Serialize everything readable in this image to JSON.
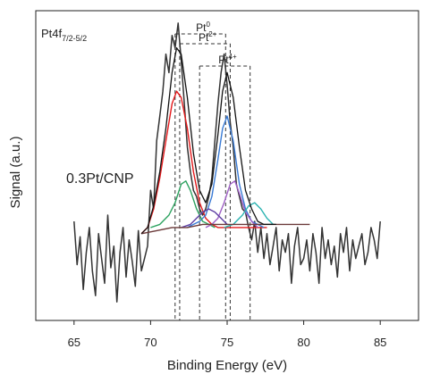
{
  "chart_data": {
    "type": "line",
    "title": "",
    "xlabel": "Binding Energy (eV)",
    "ylabel": "Signal (a.u.)",
    "xlim": [
      62.5,
      87.5
    ],
    "ylim": [
      0,
      1
    ],
    "xticks": [
      65,
      70,
      75,
      80,
      85
    ],
    "yticks_shown": false,
    "grid": false,
    "legend": "none",
    "annotations": {
      "region_label": "Pt4f",
      "region_sub": "7/2-5/2",
      "sample_label": "0.3Pt/CNP",
      "states": [
        {
          "base": "Pt",
          "sup": "0",
          "positions_ev": [
            71.6,
            74.9
          ]
        },
        {
          "base": "Pt",
          "sup": "2+",
          "positions_ev": [
            71.9,
            75.2
          ]
        },
        {
          "base": "Pt",
          "sup": "4+",
          "positions_ev": [
            73.2,
            76.5
          ]
        }
      ]
    },
    "series": [
      {
        "role": "raw-signal",
        "color": "#333333",
        "x": [
          65.0,
          65.2,
          65.4,
          65.6,
          65.8,
          66.0,
          66.2,
          66.4,
          66.6,
          66.8,
          67.0,
          67.2,
          67.4,
          67.6,
          67.8,
          68.0,
          68.2,
          68.4,
          68.6,
          68.8,
          69.0,
          69.2,
          69.4,
          69.6,
          69.8,
          70.0,
          70.2,
          70.4,
          70.6,
          70.8,
          71.0,
          71.2,
          71.4,
          71.6,
          71.8,
          72.0,
          72.2,
          72.4,
          72.6,
          72.8,
          73.0,
          73.2,
          73.4,
          73.6,
          73.8,
          74.0,
          74.2,
          74.4,
          74.6,
          74.8,
          75.0,
          75.2,
          75.4,
          75.6,
          75.8,
          76.0,
          76.2,
          76.4,
          76.6,
          76.8,
          77.0,
          77.2,
          77.4,
          77.6,
          77.8,
          78.0,
          78.2,
          78.4,
          78.6,
          78.8,
          79.0,
          79.2,
          79.4,
          79.6,
          79.8,
          80.0,
          80.2,
          80.4,
          80.6,
          80.8,
          81.0,
          81.2,
          81.4,
          81.6,
          81.8,
          82.0,
          82.2,
          82.4,
          82.6,
          82.8,
          83.0,
          83.2,
          83.4,
          83.6,
          83.8,
          84.0,
          84.2,
          84.4,
          84.6,
          84.8,
          85.0
        ],
        "y": [
          0.32,
          0.18,
          0.27,
          0.1,
          0.22,
          0.3,
          0.16,
          0.08,
          0.28,
          0.2,
          0.12,
          0.34,
          0.17,
          0.24,
          0.06,
          0.22,
          0.3,
          0.14,
          0.26,
          0.19,
          0.11,
          0.29,
          0.16,
          0.2,
          0.24,
          0.42,
          0.36,
          0.58,
          0.66,
          0.74,
          0.86,
          0.8,
          0.92,
          0.88,
          0.96,
          0.84,
          0.7,
          0.56,
          0.48,
          0.42,
          0.4,
          0.36,
          0.34,
          0.36,
          0.4,
          0.46,
          0.58,
          0.7,
          0.8,
          0.86,
          0.76,
          0.64,
          0.56,
          0.44,
          0.4,
          0.36,
          0.35,
          0.3,
          0.26,
          0.32,
          0.22,
          0.3,
          0.2,
          0.28,
          0.18,
          0.24,
          0.3,
          0.16,
          0.26,
          0.22,
          0.28,
          0.12,
          0.24,
          0.3,
          0.18,
          0.2,
          0.26,
          0.16,
          0.28,
          0.22,
          0.12,
          0.3,
          0.2,
          0.26,
          0.18,
          0.24,
          0.14,
          0.28,
          0.22,
          0.3,
          0.16,
          0.26,
          0.2,
          0.24,
          0.28,
          0.18,
          0.22,
          0.3,
          0.26,
          0.2,
          0.32
        ]
      },
      {
        "role": "peak-fit",
        "color": "#e41a1c",
        "x": [
          69.4,
          69.8,
          70.2,
          70.6,
          71.0,
          71.4,
          71.7,
          72.0,
          72.4,
          72.8,
          73.2,
          73.6,
          74.0,
          74.4,
          74.8,
          75.2,
          75.6,
          76.0,
          76.4,
          76.8,
          77.2,
          77.6
        ],
        "y": [
          0.28,
          0.3,
          0.36,
          0.46,
          0.58,
          0.7,
          0.74,
          0.72,
          0.62,
          0.48,
          0.38,
          0.33,
          0.31,
          0.3,
          0.3,
          0.3,
          0.3,
          0.3,
          0.3,
          0.3,
          0.3,
          0.3
        ]
      },
      {
        "role": "peak-fit",
        "color": "#3a7bd5",
        "x": [
          72.4,
          72.8,
          73.2,
          73.6,
          74.0,
          74.4,
          74.7,
          75.0,
          75.4,
          75.8,
          76.2,
          76.6,
          77.0,
          77.4
        ],
        "y": [
          0.3,
          0.31,
          0.32,
          0.34,
          0.4,
          0.52,
          0.62,
          0.66,
          0.58,
          0.44,
          0.36,
          0.32,
          0.31,
          0.3
        ]
      },
      {
        "role": "peak-fit",
        "color": "#2ca25f",
        "x": [
          70.0,
          70.6,
          71.2,
          71.6,
          72.0,
          72.3,
          72.6,
          73.0,
          73.4,
          73.8,
          74.2
        ],
        "y": [
          0.3,
          0.31,
          0.34,
          0.38,
          0.44,
          0.45,
          0.42,
          0.36,
          0.32,
          0.31,
          0.3
        ]
      },
      {
        "role": "peak-fit",
        "color": "#9e5fc4",
        "x": [
          73.6,
          74.0,
          74.4,
          74.8,
          75.2,
          75.5,
          75.8,
          76.2,
          76.6,
          77.0
        ],
        "y": [
          0.3,
          0.31,
          0.33,
          0.38,
          0.44,
          0.45,
          0.41,
          0.35,
          0.32,
          0.3
        ]
      },
      {
        "role": "peak-fit",
        "color": "#2bb3b1",
        "x": [
          74.8,
          75.4,
          76.0,
          76.4,
          76.8,
          77.2,
          77.6,
          78.0
        ],
        "y": [
          0.3,
          0.31,
          0.34,
          0.37,
          0.38,
          0.36,
          0.33,
          0.31
        ]
      },
      {
        "role": "peak-fit",
        "color": "#5e3fa3",
        "x": [
          72.0,
          72.6,
          73.0,
          73.4,
          73.8,
          74.2,
          74.6,
          75.0
        ],
        "y": [
          0.3,
          0.31,
          0.33,
          0.35,
          0.36,
          0.35,
          0.33,
          0.31
        ]
      },
      {
        "role": "background",
        "color": "#6b3a3a",
        "x": [
          69.4,
          70.4,
          71.4,
          72.4,
          73.4,
          74.4,
          75.4,
          76.4,
          77.4,
          78.4,
          79.4,
          80.4
        ],
        "y": [
          0.28,
          0.29,
          0.3,
          0.3,
          0.31,
          0.31,
          0.31,
          0.31,
          0.31,
          0.31,
          0.31,
          0.31
        ]
      },
      {
        "role": "envelope",
        "color": "#111111",
        "x": [
          69.4,
          69.8,
          70.2,
          70.6,
          71.0,
          71.4,
          71.7,
          72.0,
          72.4,
          72.8,
          73.2,
          73.6,
          74.0,
          74.4,
          74.7,
          75.0,
          75.4,
          75.8,
          76.2,
          76.6,
          77.0,
          77.4,
          77.8,
          78.2
        ],
        "y": [
          0.28,
          0.3,
          0.37,
          0.48,
          0.62,
          0.8,
          0.88,
          0.86,
          0.72,
          0.54,
          0.42,
          0.38,
          0.44,
          0.6,
          0.74,
          0.8,
          0.72,
          0.56,
          0.42,
          0.36,
          0.32,
          0.31,
          0.31,
          0.31
        ]
      }
    ]
  }
}
